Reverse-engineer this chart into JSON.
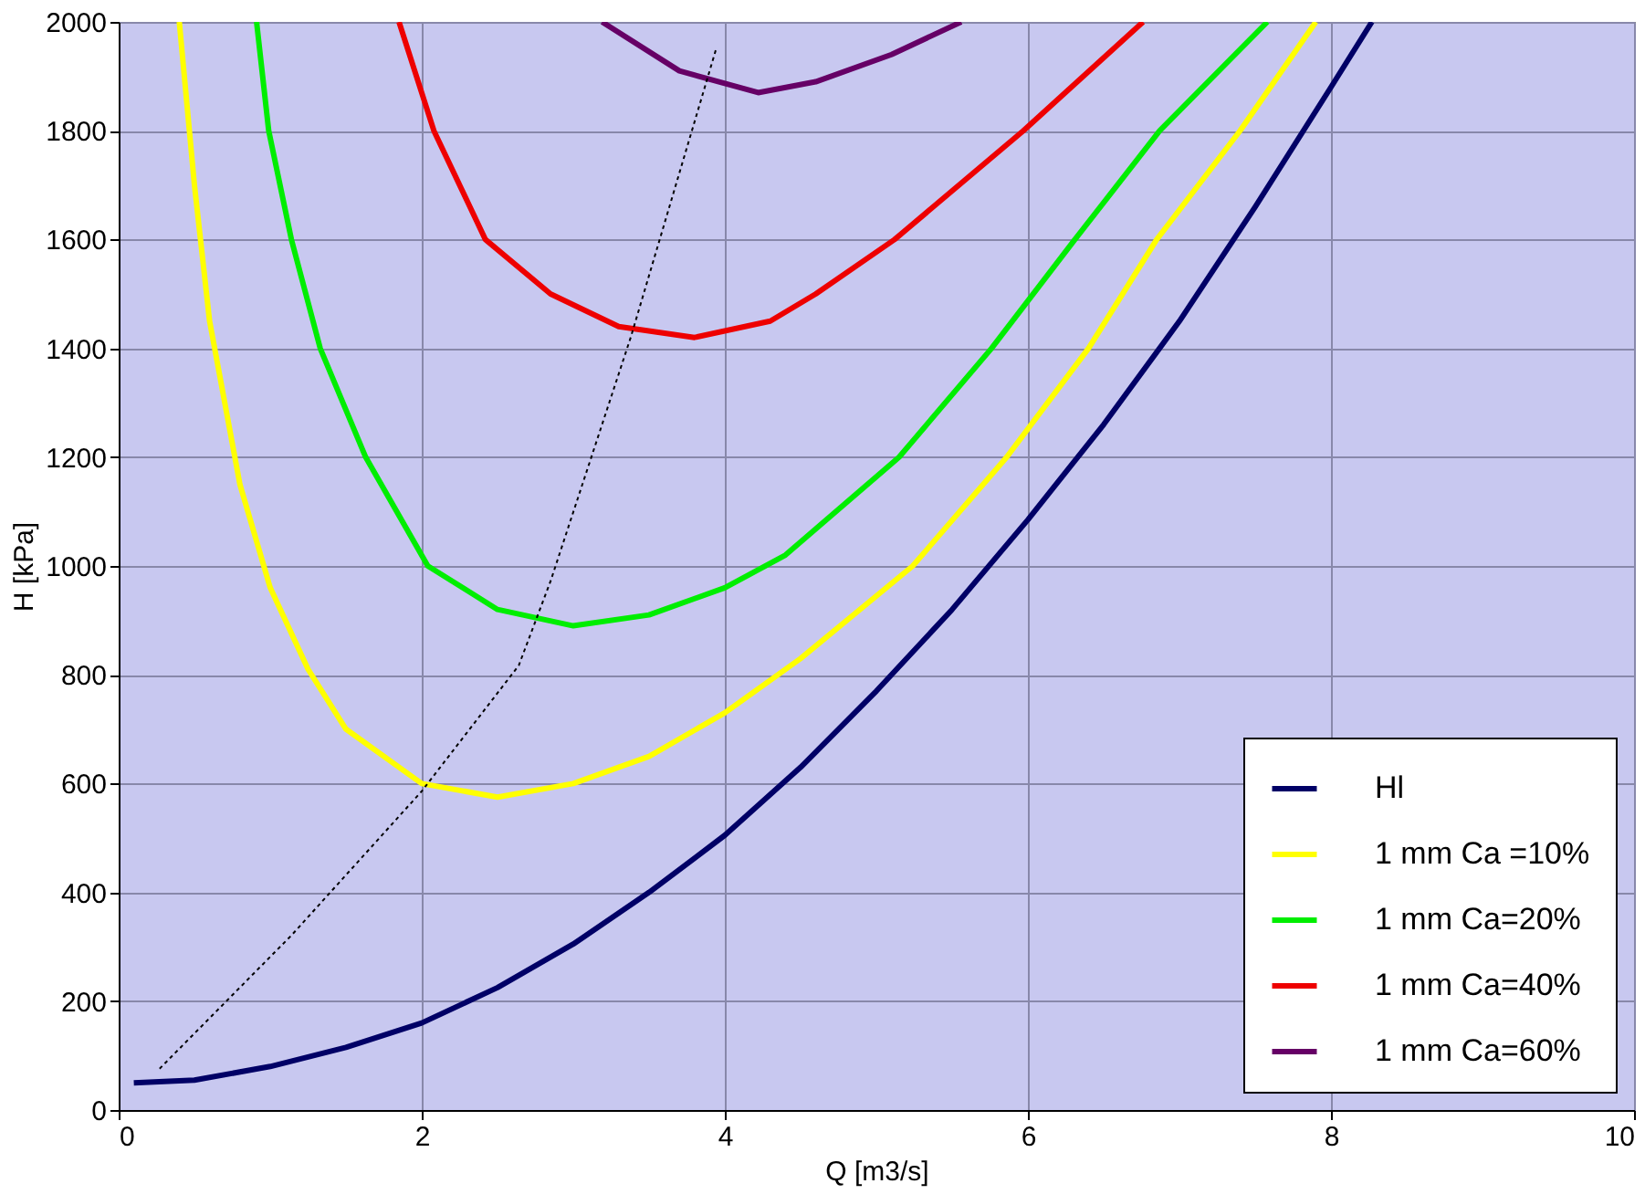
{
  "chart_data": {
    "type": "line",
    "xlabel": "Q [m3/s]",
    "ylabel": "H [kPa]",
    "xlim": [
      0,
      10
    ],
    "ylim": [
      0,
      2000
    ],
    "xticks": [
      0,
      2,
      4,
      6,
      8,
      10
    ],
    "yticks": [
      0,
      200,
      400,
      600,
      800,
      1000,
      1200,
      1400,
      1600,
      1800,
      2000
    ],
    "grid": true,
    "legend": "bottom right",
    "marker": "none",
    "series": [
      {
        "name": "Hl",
        "color": "#000066",
        "x": [
          0.1,
          0.5,
          1,
          1.5,
          2,
          2.5,
          3,
          3.5,
          4,
          4.5,
          5,
          5.5,
          6,
          6.5,
          7,
          7.5,
          8,
          8.27
        ],
        "values": [
          50,
          55,
          80,
          115,
          160,
          225,
          305,
          400,
          505,
          630,
          770,
          920,
          1085,
          1260,
          1450,
          1660,
          1880,
          2000
        ]
      },
      {
        "name": "1 mm Ca =10%",
        "color": "#ffff00",
        "x": [
          0.4,
          0.5,
          0.6,
          0.8,
          1,
          1.25,
          1.5,
          2,
          2.5,
          3,
          3.5,
          4,
          4.5,
          5.24,
          5.86,
          6.4,
          6.85,
          7.4,
          7.9
        ],
        "values": [
          2000,
          1700,
          1450,
          1150,
          960,
          810,
          700,
          600,
          575,
          600,
          650,
          730,
          830,
          1000,
          1200,
          1400,
          1600,
          1800,
          2000
        ]
      },
      {
        "name": "1 mm Ca=20%",
        "color": "#00ee00",
        "x": [
          0.91,
          0.99,
          1.14,
          1.33,
          1.63,
          2.04,
          2.5,
          3,
          3.5,
          4,
          4.4,
          5.15,
          5.76,
          6.31,
          6.87,
          7.58
        ],
        "values": [
          2000,
          1800,
          1600,
          1400,
          1200,
          1000,
          920,
          890,
          910,
          960,
          1020,
          1200,
          1400,
          1600,
          1800,
          2000
        ]
      },
      {
        "name": "1 mm Ca=40%",
        "color": "#ee0000",
        "x": [
          1.85,
          2.08,
          2.42,
          2.85,
          3.3,
          3.8,
          4.3,
          4.6,
          5.12,
          5.97,
          6.76
        ],
        "values": [
          2000,
          1800,
          1600,
          1500,
          1440,
          1420,
          1450,
          1500,
          1600,
          1800,
          2000
        ]
      },
      {
        "name": "1 mm Ca=60%",
        "color": "#660066",
        "x": [
          3.19,
          3.7,
          4.22,
          4.6,
          5.1,
          5.56
        ],
        "values": [
          2000,
          1910,
          1870,
          1890,
          1940,
          2000
        ]
      },
      {
        "color": "#000000",
        "line_style": "dotted",
        "x": [
          0.27,
          1.14,
          2.0,
          2.64,
          2.85,
          3.38,
          3.94
        ],
        "values": [
          76,
          321,
          586,
          817,
          972,
          1421,
          1948
        ]
      }
    ]
  }
}
